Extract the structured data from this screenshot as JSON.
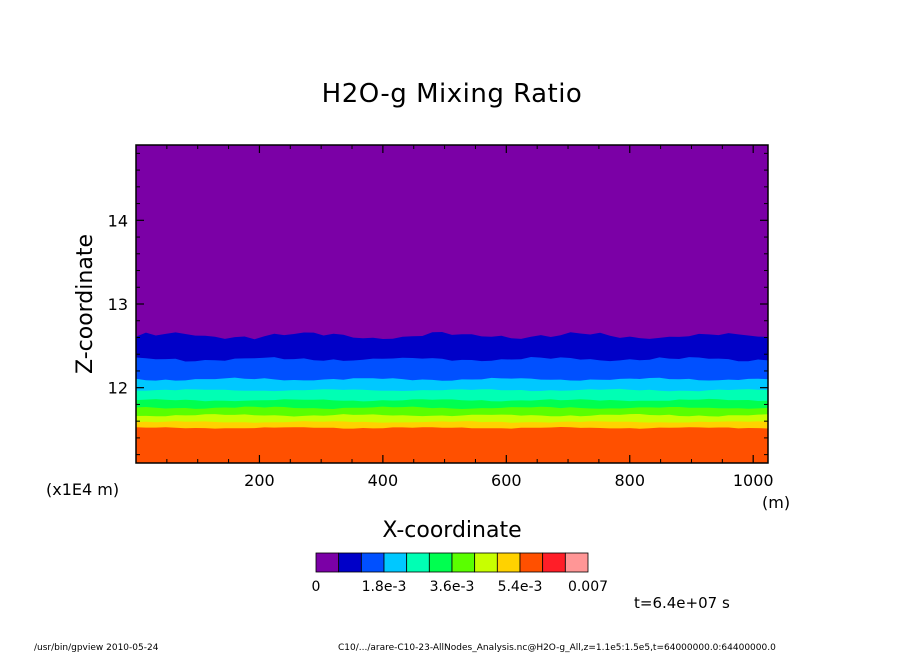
{
  "app": {
    "window_title": "gpview"
  },
  "chart_data": {
    "type": "heatmap",
    "title": "H2O-g Mixing Ratio",
    "xlabel": "X-coordinate",
    "ylabel": "Z-coordinate",
    "x_unit": "(m)",
    "y_unit": "(x1E4 m)",
    "xlim": [
      0,
      1024
    ],
    "ylim": [
      11.1,
      14.9
    ],
    "x_ticks": [
      200,
      400,
      600,
      800,
      1000
    ],
    "y_ticks": [
      12,
      13,
      14
    ],
    "x_tick_labels": [
      "200",
      "400",
      "600",
      "800",
      "1000"
    ],
    "y_tick_labels": [
      "12",
      "13",
      "14"
    ],
    "colorbar": {
      "colors": [
        "#7b00a6",
        "#0000c8",
        "#0050ff",
        "#00c8ff",
        "#00ffb4",
        "#00ff50",
        "#5aff00",
        "#c8ff00",
        "#ffd200",
        "#ff5000",
        "#ff1e28",
        "#ff9696"
      ],
      "labels": [
        "0",
        "1.8e-3",
        "3.6e-3",
        "5.4e-3",
        "0.007"
      ],
      "label_at_boundaries": [
        0,
        3,
        6,
        9,
        12
      ]
    },
    "levels": [
      0,
      0.0006,
      0.0012,
      0.0018,
      0.0024,
      0.003,
      0.0036,
      0.0042,
      0.0048,
      0.0054,
      0.006,
      0.0066,
      0.007
    ],
    "band_upper_z": [
      {
        "color_index": 1,
        "z": 12.62,
        "amplitude": 0.05
      },
      {
        "color_index": 2,
        "z": 12.34,
        "amplitude": 0.03
      },
      {
        "color_index": 3,
        "z": 12.1,
        "amplitude": 0.02
      },
      {
        "color_index": 4,
        "z": 11.97,
        "amplitude": 0.015
      },
      {
        "color_index": 5,
        "z": 11.85,
        "amplitude": 0.015
      },
      {
        "color_index": 6,
        "z": 11.76,
        "amplitude": 0.015
      },
      {
        "color_index": 7,
        "z": 11.67,
        "amplitude": 0.015
      },
      {
        "color_index": 8,
        "z": 11.59,
        "amplitude": 0.01
      },
      {
        "color_index": 9,
        "z": 11.52,
        "amplitude": 0.01
      }
    ]
  },
  "annotations": {
    "time": "t=6.4e+07 s",
    "footer_left": "/usr/bin/gpview  2010-05-24",
    "footer_right": "C10/.../arare-C10-23-AllNodes_Analysis.nc@H2O-g_All,z=1.1e5:1.5e5,t=64000000.0:64400000.0"
  }
}
